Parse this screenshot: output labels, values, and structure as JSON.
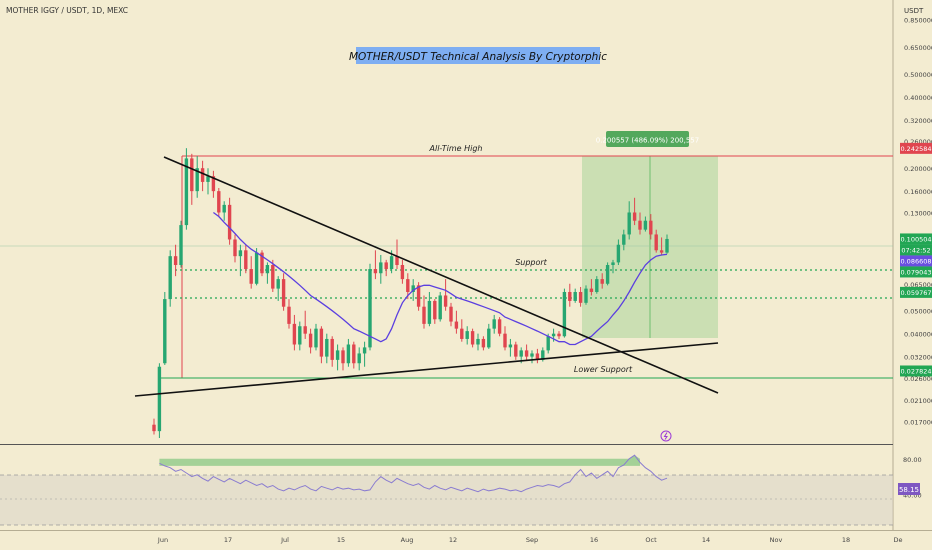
{
  "header": {
    "symbol_line": "MOTHER IGGY / USDT, 1D, MEXC",
    "currency": "USDT",
    "analysis_title": "MOTHER/USDT Technical Analysis By Cryptorphic"
  },
  "annotations": {
    "all_time_high": "All-Time High",
    "support": "Support",
    "lower_support": "Lower Support",
    "measure_box": "0.200557 (486.09%) 200,557"
  },
  "price_axis": {
    "ticks": [
      "0.850000",
      "0.650000",
      "0.500000",
      "0.400000",
      "0.320000",
      "0.260000",
      "0.200000",
      "0.160000",
      "0.130000",
      "0.100000",
      "0.080000",
      "0.065000",
      "0.050000",
      "0.040000",
      "0.032000",
      "0.026000",
      "0.021000",
      "0.017000"
    ],
    "badges": [
      {
        "label": "0.242584",
        "color": "#e0454f"
      },
      {
        "label": "0.100504",
        "color": "#22a654"
      },
      {
        "label": "07:42:52",
        "color": "#22a654"
      },
      {
        "label": "0.086608",
        "color": "#6a4fe0"
      },
      {
        "label": "0.079043",
        "color": "#22a654"
      },
      {
        "label": "0.059767",
        "color": "#22a654"
      },
      {
        "label": "0.027824",
        "color": "#22a654"
      }
    ]
  },
  "rsi_axis": {
    "ticks": [
      "80.00",
      "40.00"
    ],
    "value_badge": "58.15"
  },
  "time_axis": {
    "labels": [
      "Jun",
      "17",
      "Jul",
      "15",
      "Aug",
      "12",
      "Sep",
      "16",
      "Oct",
      "14",
      "Nov",
      "18",
      "De"
    ]
  },
  "chart_data": {
    "type": "candlestick",
    "symbol": "MOTHER IGGY / USDT",
    "interval": "1D",
    "exchange": "MEXC",
    "y_scale": "log",
    "ylim": [
      0.0145,
      0.95
    ],
    "price_levels": {
      "all_time_high": 0.242584,
      "support": 0.079043,
      "support_2": 0.059767,
      "lower_support": 0.027824,
      "last_price": 0.100504,
      "moving_average": 0.086608
    },
    "measure_percent": "486.09%",
    "rsi_last": 58.15,
    "rsi_bands": [
      40,
      80
    ],
    "candles": [
      {
        "o": 0.0165,
        "h": 0.0175,
        "l": 0.015,
        "c": 0.0155
      },
      {
        "o": 0.0155,
        "h": 0.03,
        "l": 0.0145,
        "c": 0.029
      },
      {
        "o": 0.03,
        "h": 0.06,
        "l": 0.0295,
        "c": 0.056
      },
      {
        "o": 0.056,
        "h": 0.09,
        "l": 0.052,
        "c": 0.085
      },
      {
        "o": 0.085,
        "h": 0.095,
        "l": 0.07,
        "c": 0.078
      },
      {
        "o": 0.078,
        "h": 0.12,
        "l": 0.076,
        "c": 0.115
      },
      {
        "o": 0.115,
        "h": 0.243,
        "l": 0.11,
        "c": 0.22
      },
      {
        "o": 0.22,
        "h": 0.23,
        "l": 0.14,
        "c": 0.16
      },
      {
        "o": 0.16,
        "h": 0.225,
        "l": 0.15,
        "c": 0.2
      },
      {
        "o": 0.2,
        "h": 0.215,
        "l": 0.16,
        "c": 0.175
      },
      {
        "o": 0.175,
        "h": 0.2,
        "l": 0.155,
        "c": 0.185
      },
      {
        "o": 0.185,
        "h": 0.195,
        "l": 0.15,
        "c": 0.16
      },
      {
        "o": 0.16,
        "h": 0.165,
        "l": 0.125,
        "c": 0.13
      },
      {
        "o": 0.13,
        "h": 0.145,
        "l": 0.12,
        "c": 0.14
      },
      {
        "o": 0.14,
        "h": 0.15,
        "l": 0.095,
        "c": 0.1
      },
      {
        "o": 0.1,
        "h": 0.105,
        "l": 0.08,
        "c": 0.085
      },
      {
        "o": 0.085,
        "h": 0.095,
        "l": 0.07,
        "c": 0.09
      },
      {
        "o": 0.09,
        "h": 0.095,
        "l": 0.072,
        "c": 0.075
      },
      {
        "o": 0.075,
        "h": 0.085,
        "l": 0.062,
        "c": 0.065
      },
      {
        "o": 0.065,
        "h": 0.092,
        "l": 0.064,
        "c": 0.088
      },
      {
        "o": 0.088,
        "h": 0.09,
        "l": 0.07,
        "c": 0.072
      },
      {
        "o": 0.072,
        "h": 0.08,
        "l": 0.065,
        "c": 0.078
      },
      {
        "o": 0.078,
        "h": 0.082,
        "l": 0.06,
        "c": 0.062
      },
      {
        "o": 0.062,
        "h": 0.07,
        "l": 0.055,
        "c": 0.068
      },
      {
        "o": 0.068,
        "h": 0.072,
        "l": 0.05,
        "c": 0.052
      },
      {
        "o": 0.052,
        "h": 0.056,
        "l": 0.042,
        "c": 0.044
      },
      {
        "o": 0.044,
        "h": 0.048,
        "l": 0.034,
        "c": 0.036
      },
      {
        "o": 0.036,
        "h": 0.045,
        "l": 0.034,
        "c": 0.043
      },
      {
        "o": 0.043,
        "h": 0.05,
        "l": 0.038,
        "c": 0.04
      },
      {
        "o": 0.04,
        "h": 0.042,
        "l": 0.033,
        "c": 0.035
      },
      {
        "o": 0.035,
        "h": 0.044,
        "l": 0.034,
        "c": 0.042
      },
      {
        "o": 0.042,
        "h": 0.043,
        "l": 0.03,
        "c": 0.032
      },
      {
        "o": 0.032,
        "h": 0.04,
        "l": 0.03,
        "c": 0.038
      },
      {
        "o": 0.038,
        "h": 0.039,
        "l": 0.029,
        "c": 0.031
      },
      {
        "o": 0.031,
        "h": 0.036,
        "l": 0.028,
        "c": 0.034
      },
      {
        "o": 0.034,
        "h": 0.035,
        "l": 0.028,
        "c": 0.03
      },
      {
        "o": 0.03,
        "h": 0.038,
        "l": 0.029,
        "c": 0.036
      },
      {
        "o": 0.036,
        "h": 0.037,
        "l": 0.0285,
        "c": 0.03
      },
      {
        "o": 0.03,
        "h": 0.035,
        "l": 0.028,
        "c": 0.033
      },
      {
        "o": 0.033,
        "h": 0.037,
        "l": 0.029,
        "c": 0.035
      },
      {
        "o": 0.035,
        "h": 0.079,
        "l": 0.034,
        "c": 0.075
      },
      {
        "o": 0.075,
        "h": 0.09,
        "l": 0.068,
        "c": 0.072
      },
      {
        "o": 0.072,
        "h": 0.086,
        "l": 0.065,
        "c": 0.08
      },
      {
        "o": 0.08,
        "h": 0.082,
        "l": 0.07,
        "c": 0.075
      },
      {
        "o": 0.075,
        "h": 0.09,
        "l": 0.072,
        "c": 0.085
      },
      {
        "o": 0.085,
        "h": 0.1,
        "l": 0.075,
        "c": 0.078
      },
      {
        "o": 0.078,
        "h": 0.082,
        "l": 0.065,
        "c": 0.068
      },
      {
        "o": 0.068,
        "h": 0.072,
        "l": 0.056,
        "c": 0.06
      },
      {
        "o": 0.06,
        "h": 0.068,
        "l": 0.055,
        "c": 0.064
      },
      {
        "o": 0.064,
        "h": 0.066,
        "l": 0.05,
        "c": 0.052
      },
      {
        "o": 0.052,
        "h": 0.058,
        "l": 0.042,
        "c": 0.044
      },
      {
        "o": 0.044,
        "h": 0.06,
        "l": 0.043,
        "c": 0.055
      },
      {
        "o": 0.055,
        "h": 0.056,
        "l": 0.044,
        "c": 0.046
      },
      {
        "o": 0.046,
        "h": 0.06,
        "l": 0.045,
        "c": 0.058
      },
      {
        "o": 0.058,
        "h": 0.068,
        "l": 0.05,
        "c": 0.052
      },
      {
        "o": 0.052,
        "h": 0.054,
        "l": 0.043,
        "c": 0.045
      },
      {
        "o": 0.045,
        "h": 0.05,
        "l": 0.04,
        "c": 0.042
      },
      {
        "o": 0.042,
        "h": 0.046,
        "l": 0.037,
        "c": 0.038
      },
      {
        "o": 0.038,
        "h": 0.043,
        "l": 0.036,
        "c": 0.041
      },
      {
        "o": 0.041,
        "h": 0.042,
        "l": 0.035,
        "c": 0.036
      },
      {
        "o": 0.036,
        "h": 0.04,
        "l": 0.034,
        "c": 0.038
      },
      {
        "o": 0.038,
        "h": 0.039,
        "l": 0.034,
        "c": 0.035
      },
      {
        "o": 0.035,
        "h": 0.044,
        "l": 0.0345,
        "c": 0.042
      },
      {
        "o": 0.042,
        "h": 0.048,
        "l": 0.04,
        "c": 0.046
      },
      {
        "o": 0.046,
        "h": 0.047,
        "l": 0.039,
        "c": 0.04
      },
      {
        "o": 0.04,
        "h": 0.043,
        "l": 0.034,
        "c": 0.035
      },
      {
        "o": 0.035,
        "h": 0.038,
        "l": 0.032,
        "c": 0.036
      },
      {
        "o": 0.036,
        "h": 0.037,
        "l": 0.031,
        "c": 0.032
      },
      {
        "o": 0.032,
        "h": 0.035,
        "l": 0.03,
        "c": 0.034
      },
      {
        "o": 0.034,
        "h": 0.036,
        "l": 0.031,
        "c": 0.032
      },
      {
        "o": 0.032,
        "h": 0.034,
        "l": 0.03,
        "c": 0.033
      },
      {
        "o": 0.033,
        "h": 0.0345,
        "l": 0.03,
        "c": 0.031
      },
      {
        "o": 0.031,
        "h": 0.035,
        "l": 0.0305,
        "c": 0.034
      },
      {
        "o": 0.034,
        "h": 0.04,
        "l": 0.033,
        "c": 0.039
      },
      {
        "o": 0.039,
        "h": 0.042,
        "l": 0.037,
        "c": 0.04
      },
      {
        "o": 0.04,
        "h": 0.041,
        "l": 0.038,
        "c": 0.039
      },
      {
        "o": 0.039,
        "h": 0.062,
        "l": 0.0385,
        "c": 0.06
      },
      {
        "o": 0.06,
        "h": 0.065,
        "l": 0.052,
        "c": 0.055
      },
      {
        "o": 0.055,
        "h": 0.062,
        "l": 0.054,
        "c": 0.06
      },
      {
        "o": 0.06,
        "h": 0.063,
        "l": 0.052,
        "c": 0.054
      },
      {
        "o": 0.054,
        "h": 0.064,
        "l": 0.053,
        "c": 0.062
      },
      {
        "o": 0.062,
        "h": 0.068,
        "l": 0.058,
        "c": 0.06
      },
      {
        "o": 0.06,
        "h": 0.07,
        "l": 0.059,
        "c": 0.068
      },
      {
        "o": 0.068,
        "h": 0.072,
        "l": 0.062,
        "c": 0.065
      },
      {
        "o": 0.065,
        "h": 0.08,
        "l": 0.064,
        "c": 0.078
      },
      {
        "o": 0.078,
        "h": 0.082,
        "l": 0.072,
        "c": 0.08
      },
      {
        "o": 0.08,
        "h": 0.1,
        "l": 0.078,
        "c": 0.095
      },
      {
        "o": 0.095,
        "h": 0.11,
        "l": 0.09,
        "c": 0.105
      },
      {
        "o": 0.105,
        "h": 0.145,
        "l": 0.1,
        "c": 0.13
      },
      {
        "o": 0.13,
        "h": 0.15,
        "l": 0.115,
        "c": 0.12
      },
      {
        "o": 0.12,
        "h": 0.13,
        "l": 0.105,
        "c": 0.11
      },
      {
        "o": 0.11,
        "h": 0.125,
        "l": 0.108,
        "c": 0.12
      },
      {
        "o": 0.12,
        "h": 0.128,
        "l": 0.1,
        "c": 0.105
      },
      {
        "o": 0.105,
        "h": 0.11,
        "l": 0.088,
        "c": 0.09
      },
      {
        "o": 0.09,
        "h": 0.102,
        "l": 0.086,
        "c": 0.088
      },
      {
        "o": 0.088,
        "h": 0.105,
        "l": 0.087,
        "c": 0.1005
      }
    ],
    "moving_average": [
      0.13,
      0.125,
      0.118,
      0.112,
      0.106,
      0.1,
      0.095,
      0.091,
      0.088,
      0.085,
      0.082,
      0.079,
      0.076,
      0.073,
      0.07,
      0.067,
      0.064,
      0.061,
      0.058,
      0.056,
      0.054,
      0.052,
      0.05,
      0.048,
      0.046,
      0.044,
      0.042,
      0.041,
      0.04,
      0.039,
      0.038,
      0.037,
      0.038,
      0.042,
      0.048,
      0.054,
      0.058,
      0.061,
      0.063,
      0.064,
      0.064,
      0.063,
      0.062,
      0.061,
      0.059,
      0.057,
      0.056,
      0.055,
      0.054,
      0.053,
      0.052,
      0.051,
      0.05,
      0.049,
      0.047,
      0.046,
      0.045,
      0.044,
      0.043,
      0.042,
      0.041,
      0.04,
      0.039,
      0.038,
      0.037,
      0.037,
      0.036,
      0.036,
      0.037,
      0.038,
      0.039,
      0.041,
      0.043,
      0.045,
      0.048,
      0.051,
      0.055,
      0.06,
      0.066,
      0.072,
      0.078,
      0.082,
      0.085,
      0.086,
      0.0866
    ],
    "rsi": [
      75,
      72,
      70,
      66,
      68,
      64,
      60,
      62,
      58,
      55,
      60,
      57,
      54,
      58,
      55,
      52,
      56,
      53,
      50,
      52,
      48,
      50,
      46,
      44,
      47,
      45,
      48,
      50,
      46,
      44,
      49,
      47,
      45,
      48,
      46,
      47,
      45,
      46,
      44,
      45,
      54,
      60,
      56,
      53,
      58,
      55,
      52,
      50,
      52,
      48,
      46,
      50,
      47,
      45,
      48,
      46,
      44,
      47,
      45,
      43,
      46,
      44,
      45,
      47,
      46,
      44,
      45,
      43,
      46,
      48,
      50,
      49,
      51,
      50,
      48,
      52,
      54,
      62,
      68,
      60,
      64,
      58,
      62,
      66,
      60,
      70,
      73,
      80,
      84,
      76,
      70,
      66,
      60,
      56,
      58.15
    ]
  }
}
